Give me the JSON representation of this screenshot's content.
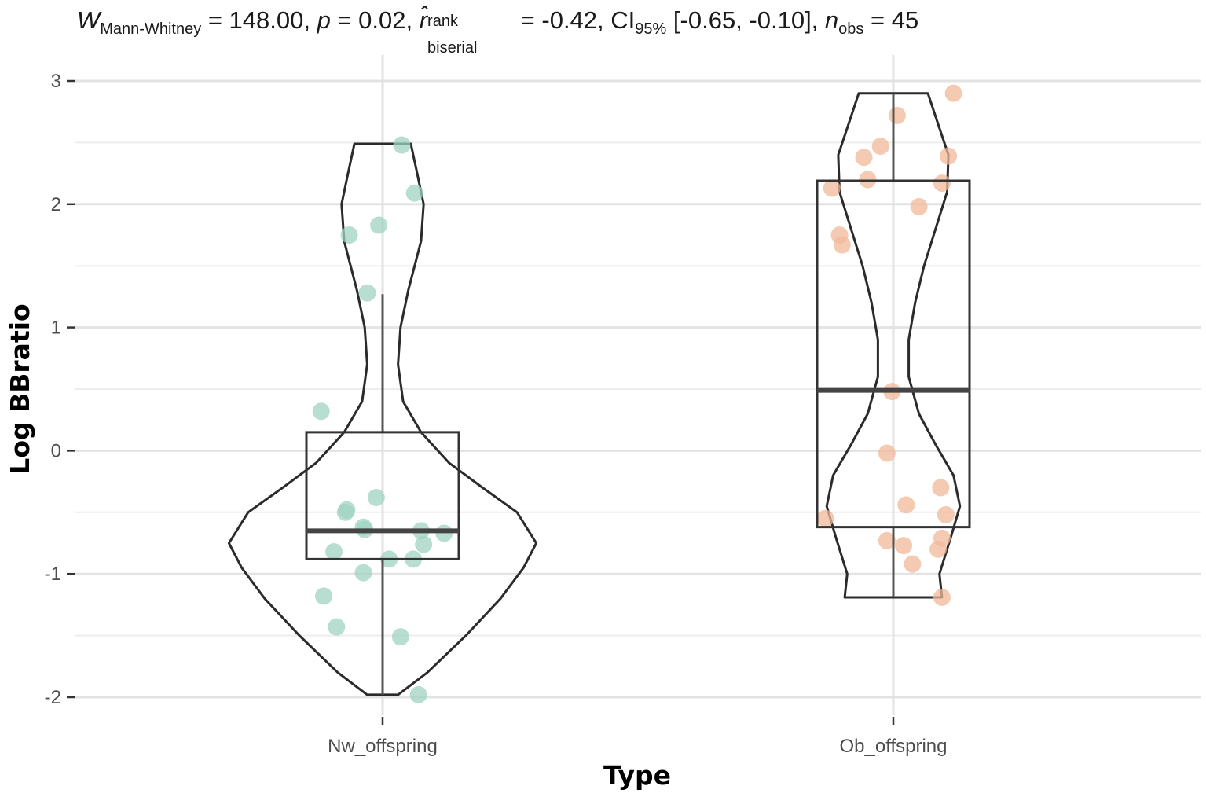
{
  "stats_line": {
    "w_symbol": "W",
    "w_sub": "Mann-Whitney",
    "w_value": " = 148.00, ",
    "p_symbol": "p",
    "p_value": " = 0.02, ",
    "r_symbol": "r̂",
    "r_sup": "rank",
    "r_sub": "biserial",
    "r_value": " = -0.42, CI",
    "ci_sub": "95%",
    "ci_value": " [-0.65, -0.10], ",
    "n_symbol": "n",
    "n_sub": "obs",
    "n_value": " = 45"
  },
  "chart_data": {
    "type": "violin-box-scatter",
    "xlabel": "Type",
    "ylabel": "Log BBratio",
    "categories": [
      "Nw_offspring",
      "Ob_offspring"
    ],
    "ylim": [
      -2.2,
      3.1
    ],
    "yticks": [
      3,
      2,
      1,
      0,
      -1,
      -2
    ],
    "ytick_labels": [
      "3",
      "2",
      "1",
      "0",
      "-1",
      "-2"
    ],
    "grid": true,
    "colors": {
      "Nw_offspring": "#9fd3c1",
      "Ob_offspring": "#f2b89a",
      "outline": "#2b2b2b"
    },
    "box": [
      {
        "category": "Nw_offspring",
        "q1": -0.88,
        "median": -0.65,
        "q3": 0.15,
        "whisker_low": -1.98,
        "whisker_high": 1.27
      },
      {
        "category": "Ob_offspring",
        "q1": -0.62,
        "median": 0.49,
        "q3": 2.19,
        "whisker_low": -1.19,
        "whisker_high": 2.9
      }
    ],
    "violin": [
      {
        "category": "Nw_offspring",
        "profile": [
          [
            -1.98,
            0.12
          ],
          [
            -1.8,
            0.35
          ],
          [
            -1.5,
            0.65
          ],
          [
            -1.2,
            0.92
          ],
          [
            -0.95,
            1.1
          ],
          [
            -0.75,
            1.2
          ],
          [
            -0.5,
            1.05
          ],
          [
            -0.3,
            0.78
          ],
          [
            -0.1,
            0.52
          ],
          [
            0.15,
            0.3
          ],
          [
            0.4,
            0.16
          ],
          [
            0.7,
            0.12
          ],
          [
            1.0,
            0.14
          ],
          [
            1.3,
            0.2
          ],
          [
            1.7,
            0.3
          ],
          [
            2.0,
            0.32
          ],
          [
            2.25,
            0.27
          ],
          [
            2.49,
            0.22
          ]
        ]
      },
      {
        "category": "Ob_offspring",
        "profile": [
          [
            -1.19,
            0.38
          ],
          [
            -1.0,
            0.36
          ],
          [
            -0.7,
            0.45
          ],
          [
            -0.45,
            0.52
          ],
          [
            -0.2,
            0.47
          ],
          [
            0.05,
            0.33
          ],
          [
            0.3,
            0.2
          ],
          [
            0.6,
            0.12
          ],
          [
            0.9,
            0.12
          ],
          [
            1.2,
            0.17
          ],
          [
            1.5,
            0.24
          ],
          [
            1.8,
            0.33
          ],
          [
            2.1,
            0.42
          ],
          [
            2.4,
            0.43
          ],
          [
            2.65,
            0.35
          ],
          [
            2.9,
            0.27
          ]
        ]
      }
    ],
    "series": [
      {
        "category": "Nw_offspring",
        "points": [
          [
            0.15,
            2.48
          ],
          [
            0.25,
            2.09
          ],
          [
            -0.03,
            1.83
          ],
          [
            -0.26,
            1.75
          ],
          [
            -0.12,
            1.28
          ],
          [
            -0.48,
            0.32
          ],
          [
            -0.28,
            -0.48
          ],
          [
            -0.29,
            -0.5
          ],
          [
            -0.05,
            -0.38
          ],
          [
            -0.15,
            -0.62
          ],
          [
            -0.14,
            -0.64
          ],
          [
            0.3,
            -0.65
          ],
          [
            0.48,
            -0.67
          ],
          [
            0.32,
            -0.76
          ],
          [
            -0.38,
            -0.82
          ],
          [
            0.05,
            -0.88
          ],
          [
            0.24,
            -0.88
          ],
          [
            -0.15,
            -0.99
          ],
          [
            -0.46,
            -1.18
          ],
          [
            -0.36,
            -1.43
          ],
          [
            0.14,
            -1.51
          ],
          [
            0.28,
            -1.98
          ]
        ]
      },
      {
        "category": "Ob_offspring",
        "points": [
          [
            0.47,
            2.9
          ],
          [
            0.03,
            2.72
          ],
          [
            -0.1,
            2.47
          ],
          [
            -0.23,
            2.38
          ],
          [
            0.43,
            2.39
          ],
          [
            -0.2,
            2.2
          ],
          [
            0.38,
            2.17
          ],
          [
            -0.48,
            2.13
          ],
          [
            0.2,
            1.98
          ],
          [
            -0.42,
            1.75
          ],
          [
            -0.4,
            1.67
          ],
          [
            -0.01,
            0.48
          ],
          [
            -0.05,
            -0.02
          ],
          [
            0.37,
            -0.3
          ],
          [
            0.1,
            -0.44
          ],
          [
            -0.53,
            -0.55
          ],
          [
            0.41,
            -0.52
          ],
          [
            -0.05,
            -0.73
          ],
          [
            0.08,
            -0.77
          ],
          [
            0.38,
            -0.71
          ],
          [
            0.35,
            -0.8
          ],
          [
            0.15,
            -0.92
          ],
          [
            0.38,
            -1.19
          ]
        ]
      }
    ]
  }
}
